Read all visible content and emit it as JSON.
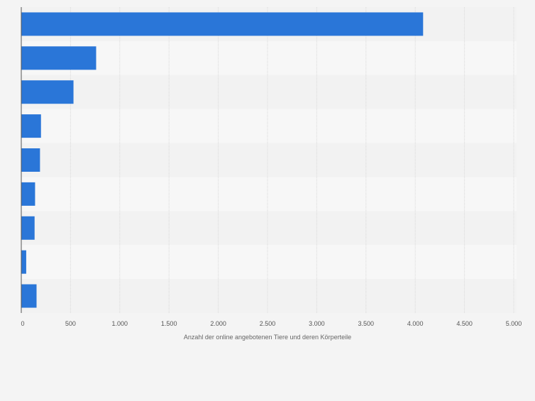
{
  "chart_data": {
    "type": "bar",
    "orientation": "horizontal",
    "title": "",
    "categories": [
      "",
      "",
      "",
      "",
      "",
      "",
      "",
      "",
      ""
    ],
    "values": [
      4080,
      760,
      530,
      200,
      190,
      140,
      135,
      50,
      155
    ],
    "xlabel": "Anzahl der online angebotenen Tiere und deren Körperteile",
    "ylabel": "",
    "xlim": [
      0,
      5000
    ],
    "xticks": [
      "0",
      "500",
      "1.000",
      "1.500",
      "2.000",
      "2.500",
      "3.000",
      "3.500",
      "4.000",
      "4.500",
      "5.000"
    ],
    "grid": "vertical",
    "bar_color": "#2a76d8",
    "band_colors": [
      "#f2f2f2",
      "#f7f7f7"
    ]
  }
}
